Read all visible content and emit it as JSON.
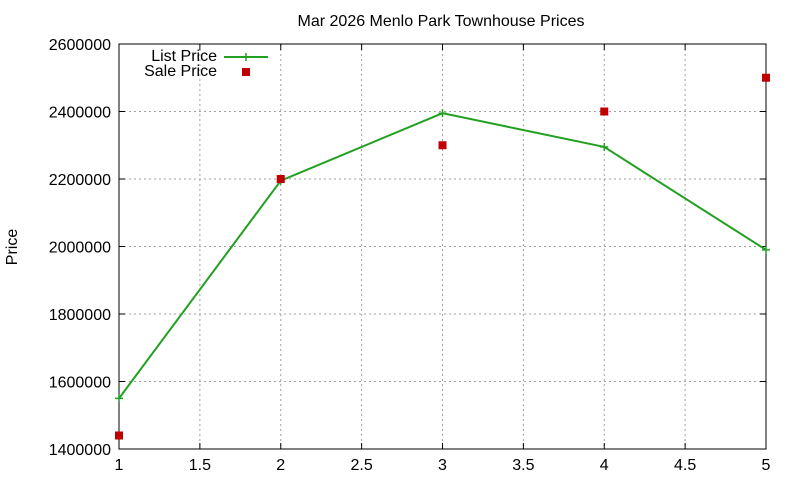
{
  "chart_data": {
    "type": "line",
    "title": "Mar 2026 Menlo Park Townhouse Prices",
    "xlabel": "",
    "ylabel": "Price",
    "xlim": [
      1,
      5
    ],
    "ylim": [
      1400000,
      2600000
    ],
    "x_ticks": [
      "1",
      "1.5",
      "2",
      "2.5",
      "3",
      "3.5",
      "4",
      "4.5",
      "5"
    ],
    "y_ticks": [
      "1400000",
      "1600000",
      "1800000",
      "2000000",
      "2200000",
      "2400000",
      "2600000"
    ],
    "grid": true,
    "legend_position": "top-left",
    "series": [
      {
        "name": "List Price",
        "style": "linespoints",
        "marker": "plus",
        "color": "#22a022",
        "x": [
          1,
          2,
          3,
          4,
          5
        ],
        "y": [
          1550000,
          2195000,
          2395000,
          2295000,
          1990000
        ]
      },
      {
        "name": "Sale Price",
        "style": "points",
        "marker": "square",
        "color": "#c00000",
        "x": [
          1,
          2,
          3,
          4,
          5
        ],
        "y": [
          1440000,
          2200000,
          2300000,
          2400000,
          2500000
        ]
      }
    ]
  }
}
